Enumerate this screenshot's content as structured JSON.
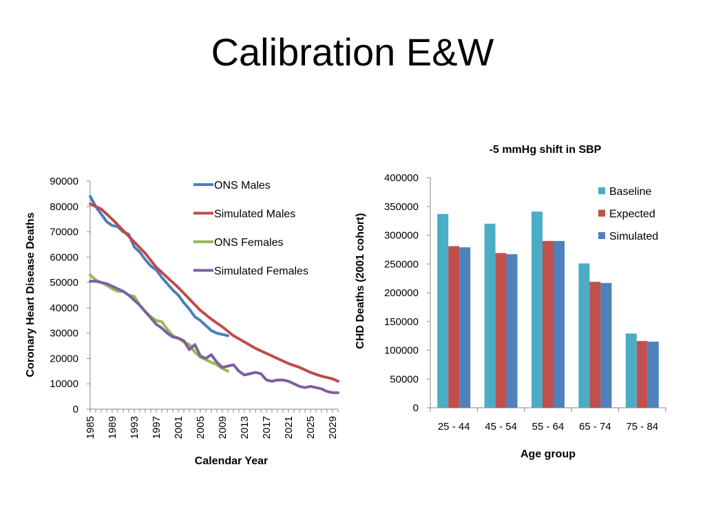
{
  "slide": {
    "title": "Calibration E&W"
  },
  "chart_data": [
    {
      "type": "line",
      "title": "",
      "xlabel": "Calendar Year",
      "ylabel": "Coronary Heart Disease Deaths",
      "xlim": [
        1985,
        2030
      ],
      "ylim": [
        0,
        90000
      ],
      "yticks": [
        0,
        10000,
        20000,
        30000,
        40000,
        50000,
        60000,
        70000,
        80000,
        90000
      ],
      "xticks": [
        1985,
        1989,
        1993,
        1997,
        2001,
        2005,
        2009,
        2013,
        2017,
        2021,
        2025,
        2029
      ],
      "grid": false,
      "legend": "top-right",
      "series": [
        {
          "name": "ONS Males",
          "color": "#4A7EBB",
          "x": [
            1985,
            1986,
            1987,
            1988,
            1989,
            1990,
            1991,
            1992,
            1993,
            1994,
            1995,
            1996,
            1997,
            1998,
            1999,
            2000,
            2001,
            2002,
            2003,
            2004,
            2005,
            2006,
            2007,
            2008,
            2009,
            2010
          ],
          "y": [
            84000,
            80000,
            77000,
            74000,
            72500,
            72000,
            70000,
            69000,
            64000,
            62000,
            59000,
            56500,
            55000,
            52000,
            49500,
            47000,
            45000,
            42000,
            39500,
            36500,
            35000,
            33000,
            31000,
            30000,
            29500,
            29000
          ]
        },
        {
          "name": "Simulated Males",
          "color": "#BE4B48",
          "x": [
            1985,
            1987,
            1989,
            1991,
            1993,
            1995,
            1997,
            1999,
            2001,
            2003,
            2005,
            2007,
            2009,
            2011,
            2013,
            2015,
            2017,
            2019,
            2021,
            2023,
            2025,
            2027,
            2029,
            2030
          ],
          "y": [
            81000,
            79000,
            75000,
            70500,
            66000,
            61500,
            56000,
            52000,
            48000,
            43500,
            39000,
            35500,
            32500,
            29000,
            26500,
            24000,
            22000,
            20000,
            18000,
            16500,
            14500,
            13000,
            12000,
            11000
          ]
        },
        {
          "name": "ONS Females",
          "color": "#98B954",
          "x": [
            1985,
            1986,
            1987,
            1988,
            1989,
            1990,
            1991,
            1992,
            1993,
            1994,
            1995,
            1996,
            1997,
            1998,
            1999,
            2000,
            2001,
            2002,
            2003,
            2004,
            2005,
            2006,
            2007,
            2008,
            2009,
            2010
          ],
          "y": [
            53000,
            51000,
            50000,
            49000,
            47500,
            46500,
            46500,
            45000,
            44500,
            41000,
            38500,
            36500,
            35000,
            34500,
            31500,
            29000,
            28000,
            26500,
            25500,
            22500,
            20500,
            19500,
            18500,
            17500,
            16000,
            15000
          ]
        },
        {
          "name": "Simulated Females",
          "color": "#7D5FA0",
          "x": [
            1985,
            1986,
            1987,
            1988,
            1989,
            1990,
            1991,
            1992,
            1993,
            1994,
            1995,
            1996,
            1997,
            1998,
            1999,
            2000,
            2001,
            2002,
            2003,
            2004,
            2005,
            2006,
            2007,
            2008,
            2009,
            2010,
            2011,
            2012,
            2013,
            2014,
            2015,
            2016,
            2017,
            2018,
            2019,
            2020,
            2021,
            2022,
            2023,
            2024,
            2025,
            2026,
            2027,
            2028,
            2029,
            2030
          ],
          "y": [
            50500,
            50500,
            50000,
            49500,
            48500,
            47500,
            46500,
            45000,
            43000,
            41000,
            38500,
            36000,
            33500,
            32000,
            30000,
            28500,
            28000,
            27000,
            23500,
            25500,
            21000,
            20000,
            21500,
            18500,
            16500,
            17000,
            17500,
            15000,
            13500,
            14000,
            14500,
            14000,
            11500,
            11000,
            11500,
            11500,
            11000,
            10000,
            9000,
            8500,
            9000,
            8500,
            8000,
            7000,
            6500,
            6500
          ]
        }
      ]
    },
    {
      "type": "bar",
      "title": "-5 mmHg shift in SBP",
      "xlabel": "Age group",
      "ylabel": "CHD Deaths (2001 cohort)",
      "ylim": [
        0,
        400000
      ],
      "yticks": [
        0,
        50000,
        100000,
        150000,
        200000,
        250000,
        300000,
        350000,
        400000
      ],
      "grid": false,
      "legend": "top-right",
      "categories": [
        "25 - 44",
        "45 - 54",
        "55 - 64",
        "65 - 74",
        "75 - 84"
      ],
      "series": [
        {
          "name": "Baseline",
          "color": "#4BACC6",
          "values": [
            337000,
            320000,
            341000,
            251000,
            129000
          ]
        },
        {
          "name": "Expected",
          "color": "#C0504D",
          "values": [
            281000,
            269000,
            290000,
            219000,
            116000
          ]
        },
        {
          "name": "Simulated",
          "color": "#4F81BD",
          "values": [
            279000,
            267000,
            290000,
            217000,
            115000
          ]
        }
      ]
    }
  ]
}
